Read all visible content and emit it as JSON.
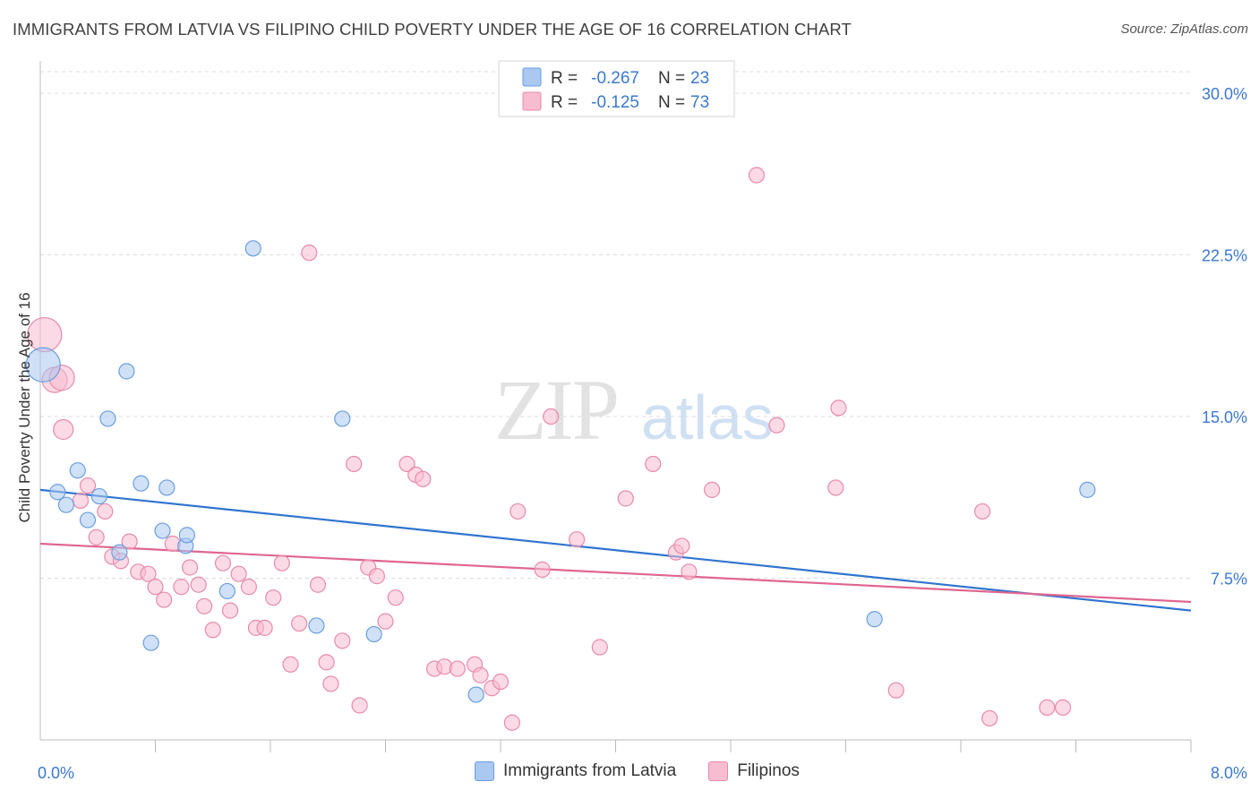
{
  "title": "IMMIGRANTS FROM LATVIA VS FILIPINO CHILD POVERTY UNDER THE AGE OF 16 CORRELATION CHART",
  "source": "Source: ZipAtlas.com",
  "watermark": {
    "zip": "ZIP",
    "atlas": "atlas"
  },
  "colors": {
    "blue_fill": "#aac8f0",
    "blue_stroke": "#6a9ee0",
    "blue_line": "#2f74d0",
    "pink_fill": "#f7bcd0",
    "pink_stroke": "#e88aaa",
    "pink_line": "#e0668e",
    "tick_text": "#3b78d0",
    "grid": "#dddddd"
  },
  "stats_legend": [
    {
      "r_label": "R = ",
      "r_value": "-0.267",
      "n_label": "N = ",
      "n_value": "23",
      "color": "blue"
    },
    {
      "r_label": "R = ",
      "r_value": "-0.125",
      "n_label": "N = ",
      "n_value": "73",
      "color": "pink"
    }
  ],
  "chart_data": {
    "type": "scatter",
    "xlabel": "",
    "ylabel": "Child Poverty Under the Age of 16",
    "xlim": [
      0,
      8
    ],
    "ylim": [
      0,
      31
    ],
    "x_tick_labels": [
      "0.0%",
      "8.0%"
    ],
    "y_ticks": [
      7.5,
      15.0,
      22.5,
      30.0
    ],
    "y_tick_labels": [
      "7.5%",
      "15.0%",
      "22.5%",
      "30.0%"
    ],
    "grid": true,
    "legend_placement": "bottom",
    "series": [
      {
        "name": "Immigrants from Latvia",
        "color": "blue",
        "trend": [
          [
            0,
            11.6
          ],
          [
            8,
            6.0
          ]
        ],
        "points": [
          {
            "x": 0.02,
            "y": 17.4,
            "s": "xl"
          },
          {
            "x": 0.12,
            "y": 11.5
          },
          {
            "x": 0.18,
            "y": 10.9
          },
          {
            "x": 0.26,
            "y": 12.5
          },
          {
            "x": 0.33,
            "y": 10.2
          },
          {
            "x": 0.41,
            "y": 11.3
          },
          {
            "x": 0.47,
            "y": 14.9
          },
          {
            "x": 0.55,
            "y": 8.7
          },
          {
            "x": 0.6,
            "y": 17.1
          },
          {
            "x": 0.7,
            "y": 11.9
          },
          {
            "x": 0.77,
            "y": 4.5
          },
          {
            "x": 0.85,
            "y": 9.7
          },
          {
            "x": 0.88,
            "y": 11.7
          },
          {
            "x": 1.01,
            "y": 9.0
          },
          {
            "x": 1.02,
            "y": 9.5
          },
          {
            "x": 1.3,
            "y": 6.9
          },
          {
            "x": 1.48,
            "y": 22.8
          },
          {
            "x": 1.92,
            "y": 5.3
          },
          {
            "x": 2.1,
            "y": 14.9
          },
          {
            "x": 2.32,
            "y": 4.9
          },
          {
            "x": 3.03,
            "y": 2.1
          },
          {
            "x": 5.8,
            "y": 5.6
          },
          {
            "x": 7.28,
            "y": 11.6
          }
        ]
      },
      {
        "name": "Filipinos",
        "color": "pink",
        "trend": [
          [
            0,
            9.1
          ],
          [
            8,
            6.4
          ]
        ],
        "points": [
          {
            "x": 0.03,
            "y": 18.8,
            "s": "xl"
          },
          {
            "x": 0.1,
            "y": 16.7,
            "s": "l"
          },
          {
            "x": 0.15,
            "y": 16.8,
            "s": "l"
          },
          {
            "x": 0.16,
            "y": 14.4,
            "s": "m"
          },
          {
            "x": 0.28,
            "y": 11.1
          },
          {
            "x": 0.33,
            "y": 11.8
          },
          {
            "x": 0.39,
            "y": 9.4
          },
          {
            "x": 0.45,
            "y": 10.6
          },
          {
            "x": 0.5,
            "y": 8.5
          },
          {
            "x": 0.56,
            "y": 8.3
          },
          {
            "x": 0.62,
            "y": 9.2
          },
          {
            "x": 0.68,
            "y": 7.8
          },
          {
            "x": 0.75,
            "y": 7.7
          },
          {
            "x": 0.8,
            "y": 7.1
          },
          {
            "x": 0.86,
            "y": 6.5
          },
          {
            "x": 0.92,
            "y": 9.1
          },
          {
            "x": 0.98,
            "y": 7.1
          },
          {
            "x": 1.04,
            "y": 8.0
          },
          {
            "x": 1.1,
            "y": 7.2
          },
          {
            "x": 1.14,
            "y": 6.2
          },
          {
            "x": 1.2,
            "y": 5.1
          },
          {
            "x": 1.27,
            "y": 8.2
          },
          {
            "x": 1.32,
            "y": 6.0
          },
          {
            "x": 1.38,
            "y": 7.7
          },
          {
            "x": 1.45,
            "y": 7.1
          },
          {
            "x": 1.5,
            "y": 5.2
          },
          {
            "x": 1.56,
            "y": 5.2
          },
          {
            "x": 1.62,
            "y": 6.6
          },
          {
            "x": 1.68,
            "y": 8.2
          },
          {
            "x": 1.74,
            "y": 3.5
          },
          {
            "x": 1.8,
            "y": 5.4
          },
          {
            "x": 1.87,
            "y": 22.6
          },
          {
            "x": 1.93,
            "y": 7.2
          },
          {
            "x": 1.99,
            "y": 3.6
          },
          {
            "x": 2.02,
            "y": 2.6
          },
          {
            "x": 2.1,
            "y": 4.6
          },
          {
            "x": 2.18,
            "y": 12.8
          },
          {
            "x": 2.22,
            "y": 1.6
          },
          {
            "x": 2.28,
            "y": 8.0
          },
          {
            "x": 2.34,
            "y": 7.6
          },
          {
            "x": 2.4,
            "y": 5.5
          },
          {
            "x": 2.47,
            "y": 6.6
          },
          {
            "x": 2.55,
            "y": 12.8
          },
          {
            "x": 2.61,
            "y": 12.3
          },
          {
            "x": 2.66,
            "y": 12.1
          },
          {
            "x": 2.74,
            "y": 3.3
          },
          {
            "x": 2.81,
            "y": 3.4
          },
          {
            "x": 2.9,
            "y": 3.3
          },
          {
            "x": 3.02,
            "y": 3.5
          },
          {
            "x": 3.06,
            "y": 3.0
          },
          {
            "x": 3.14,
            "y": 2.4
          },
          {
            "x": 3.2,
            "y": 2.7
          },
          {
            "x": 3.28,
            "y": 0.8
          },
          {
            "x": 3.32,
            "y": 10.6
          },
          {
            "x": 3.49,
            "y": 7.9
          },
          {
            "x": 3.55,
            "y": 15.0
          },
          {
            "x": 3.73,
            "y": 9.3
          },
          {
            "x": 3.89,
            "y": 4.3
          },
          {
            "x": 4.07,
            "y": 11.2
          },
          {
            "x": 4.26,
            "y": 12.8
          },
          {
            "x": 4.42,
            "y": 8.7
          },
          {
            "x": 4.46,
            "y": 9.0
          },
          {
            "x": 4.51,
            "y": 7.8
          },
          {
            "x": 4.67,
            "y": 11.6
          },
          {
            "x": 4.98,
            "y": 26.2
          },
          {
            "x": 5.12,
            "y": 14.6
          },
          {
            "x": 5.53,
            "y": 11.7
          },
          {
            "x": 5.55,
            "y": 15.4
          },
          {
            "x": 5.95,
            "y": 2.3
          },
          {
            "x": 6.55,
            "y": 10.6
          },
          {
            "x": 6.6,
            "y": 1.0
          },
          {
            "x": 7.0,
            "y": 1.5
          },
          {
            "x": 7.11,
            "y": 1.5
          }
        ]
      }
    ]
  },
  "legend": {
    "items": [
      {
        "label": "Immigrants from Latvia",
        "color": "blue"
      },
      {
        "label": "Filipinos",
        "color": "pink"
      }
    ]
  }
}
